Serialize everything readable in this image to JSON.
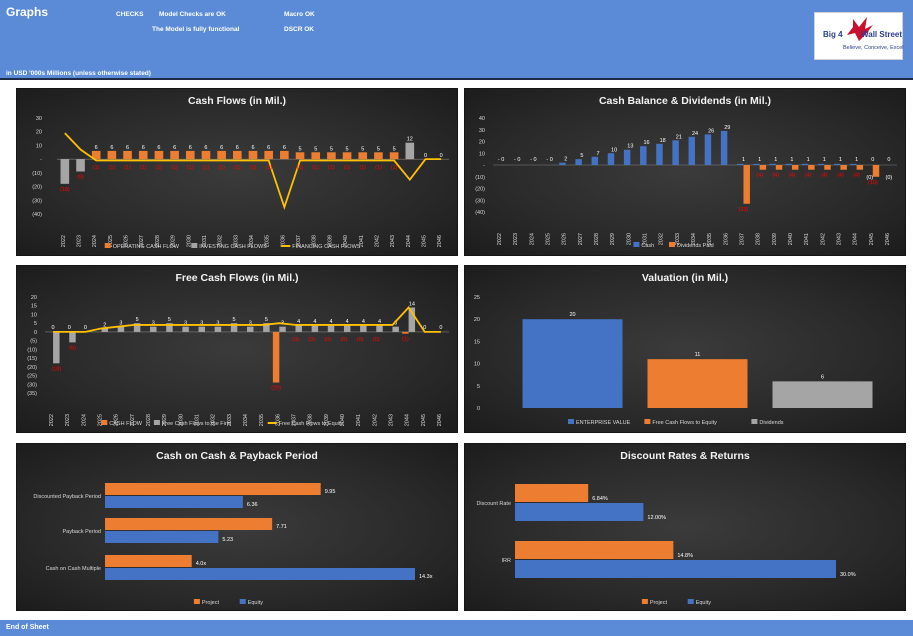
{
  "header": {
    "title": "Graphs",
    "checks_label": "CHECKS",
    "model_checks": "Model Checks are OK",
    "macro": "Macro OK",
    "functional": "The Model is fully functional",
    "dscr": "DSCR OK",
    "units": "in USD '000s Millions (unless otherwise stated)"
  },
  "logo": {
    "text_a": "Big 4",
    "text_b": "Wall Street",
    "slogan": "Believe, Conceive, Excel",
    "color": "#c8102e"
  },
  "footer": {
    "text": "End of Sheet"
  },
  "colors": {
    "blue": "#4472c4",
    "orange": "#ed7d31",
    "gray": "#a5a5a5",
    "yellow": "#ffc000",
    "negative": "#ff0000",
    "header": "#5b8bd6"
  },
  "chart_data": [
    {
      "id": "cash-flows",
      "type": "bar",
      "title": "Cash Flows (in Mil.)",
      "categories": [
        "2022",
        "2023",
        "2024",
        "2025",
        "2026",
        "2027",
        "2028",
        "2029",
        "2030",
        "2031",
        "2032",
        "2033",
        "2034",
        "2035",
        "2036",
        "2037",
        "2038",
        "2039",
        "2040",
        "2041",
        "2042",
        "2043",
        "2044",
        "2045",
        "2046"
      ],
      "yticks": [
        "30",
        "20",
        "10",
        "-",
        "(10)",
        "(20)",
        "(30)",
        "(40)"
      ],
      "ylim": [
        -40,
        30
      ],
      "series": [
        {
          "name": "OPERATING CASH FLOW",
          "kind": "bar",
          "color": "#ed7d31",
          "values": [
            0,
            0,
            6,
            6,
            6,
            6,
            6,
            6,
            6,
            6,
            6,
            6,
            6,
            6,
            6,
            5,
            5,
            5,
            5,
            5,
            5,
            5,
            1,
            0,
            0
          ]
        },
        {
          "name": "INVESTING CASH FLOWS",
          "kind": "bar",
          "color": "#a5a5a5",
          "values": [
            -18,
            -9,
            0,
            0,
            0,
            0,
            0,
            0,
            0,
            0,
            0,
            0,
            0,
            0,
            0,
            0,
            0,
            0,
            0,
            0,
            0,
            0,
            12,
            0,
            0
          ]
        },
        {
          "name": "FINANCING CASH FLOWS",
          "kind": "line",
          "color": "#ffc000",
          "values": [
            19,
            7,
            -1,
            -1,
            -1,
            -1,
            -1,
            -1,
            -1,
            -1,
            -1,
            -1,
            -1,
            -1,
            -35,
            -1,
            -1,
            -1,
            -1,
            -1,
            -1,
            -1,
            -15,
            0,
            0
          ]
        }
      ],
      "labels": [
        "(18)",
        "(9)",
        "6",
        "6",
        "6",
        "6",
        "6",
        "6",
        "6",
        "6",
        "6",
        "6",
        "6",
        "6",
        "6",
        "5",
        "5",
        "5",
        "5",
        "5",
        "5",
        "5",
        "1",
        "12",
        "0",
        "0",
        "0"
      ],
      "legend": "bottom"
    },
    {
      "id": "cash-balance",
      "type": "bar",
      "title": "Cash Balance & Dividends (in Mil.)",
      "categories": [
        "2022",
        "2023",
        "2024",
        "2025",
        "2026",
        "2027",
        "2028",
        "2029",
        "2030",
        "2031",
        "2032",
        "2033",
        "2034",
        "2035",
        "2036",
        "2037",
        "2038",
        "2039",
        "2040",
        "2041",
        "2042",
        "2043",
        "2044",
        "2045",
        "2046"
      ],
      "yticks": [
        "40",
        "30",
        "20",
        "10",
        "-",
        "(10)",
        "(20)",
        "(30)",
        "(40)"
      ],
      "ylim": [
        -40,
        40
      ],
      "series": [
        {
          "name": "Cash",
          "color": "#4472c4",
          "values": [
            0,
            0,
            0,
            0,
            2,
            5,
            7,
            10,
            13,
            16,
            18,
            21,
            24,
            26,
            29,
            1,
            1,
            1,
            1,
            1,
            1,
            1,
            1,
            0,
            0
          ]
        },
        {
          "name": "Dividends Paid",
          "color": "#ed7d31",
          "values": [
            0,
            0,
            0,
            0,
            0,
            0,
            0,
            0,
            0,
            0,
            0,
            0,
            0,
            0,
            0,
            -33,
            -4,
            -4,
            -4,
            -4,
            -4,
            -4,
            -4,
            -10,
            0
          ]
        }
      ],
      "point_labels": [
        "-",
        "0",
        "-",
        "0",
        "-",
        "0",
        "-",
        "0",
        "2",
        "0",
        "5",
        "0",
        "7",
        "0",
        "10",
        "0",
        "13",
        "0",
        "16",
        "18",
        "21",
        "24",
        "26",
        "29",
        "0",
        "1",
        "(33)",
        "1",
        "1",
        "1",
        "1",
        "1",
        "1",
        "1",
        "(0)",
        "(10)",
        "(0)",
        "0",
        "(0)",
        "0"
      ],
      "legend": "bottom"
    },
    {
      "id": "free-cash-flows",
      "type": "bar",
      "title": "Free Cash Flows (in Mil.)",
      "categories": [
        "2022",
        "2023",
        "2024",
        "2025",
        "2026",
        "2027",
        "2028",
        "2029",
        "2030",
        "2031",
        "2032",
        "2033",
        "2034",
        "2035",
        "2036",
        "2037",
        "2038",
        "2039",
        "2040",
        "2041",
        "2042",
        "2043",
        "2044",
        "2045",
        "2046"
      ],
      "yticks": [
        "20",
        "15",
        "10",
        "5",
        "0",
        "(5)",
        "(10)",
        "(15)",
        "(20)",
        "(25)",
        "(30)",
        "(35)"
      ],
      "ylim": [
        -35,
        20
      ],
      "series": [
        {
          "name": "CASH FLOW",
          "kind": "bar",
          "color": "#ed7d31",
          "values": [
            0,
            0,
            0,
            0,
            0,
            0,
            0,
            0,
            0,
            0,
            0,
            0,
            0,
            0,
            -29,
            0,
            0,
            0,
            0,
            0,
            0,
            0,
            -1,
            0,
            0
          ]
        },
        {
          "name": "Free Cash Flows to the Firm",
          "kind": "bar",
          "color": "#a5a5a5",
          "values": [
            -18,
            -6,
            0,
            2,
            3,
            5,
            3,
            5,
            3,
            3,
            3,
            5,
            3,
            5,
            3,
            4,
            4,
            4,
            4,
            4,
            4,
            3,
            14,
            0,
            0
          ]
        },
        {
          "name": "Free Cash Flows to Equity",
          "kind": "line",
          "color": "#ffc000",
          "values": [
            0,
            0,
            0,
            2,
            3,
            4,
            4,
            4,
            4,
            4,
            4,
            4,
            4,
            4,
            5,
            4,
            4,
            4,
            4,
            4,
            4,
            4,
            14,
            0,
            0
          ]
        }
      ],
      "point_labels": [
        "0",
        "(18)",
        "0",
        "(6)",
        "0",
        "2",
        "2",
        "3",
        "5",
        "3",
        "5",
        "3",
        "5",
        "3",
        "5",
        "3",
        "5",
        "3",
        "5",
        "3",
        "5",
        "3",
        "5",
        "4",
        "(29)",
        "4",
        "(0)",
        "4",
        "(0)",
        "4",
        "(0)",
        "4",
        "(0)",
        "4",
        "(0)",
        "4",
        "(0)",
        "3",
        "(1)",
        "5",
        "14",
        "0",
        "0",
        "0"
      ],
      "legend": "bottom"
    },
    {
      "id": "valuation",
      "type": "bar",
      "title": "Valuation (in Mil.)",
      "categories": [
        "ENTERPRISE VALUE",
        "Free Cash Flows to Equity",
        "Dividends"
      ],
      "values": [
        20,
        11,
        6
      ],
      "colors": [
        "#4472c4",
        "#ed7d31",
        "#a5a5a5"
      ],
      "yticks": [
        "25",
        "20",
        "15",
        "10",
        "5",
        "0"
      ],
      "ylim": [
        0,
        25
      ],
      "legend": "bottom"
    },
    {
      "id": "cash-on-cash",
      "type": "bar",
      "orientation": "horizontal",
      "title": "Cash on Cash & Payback Period",
      "categories": [
        "Discounted Payback Period",
        "Payback Period",
        "Cash on Cash Multiple"
      ],
      "series": [
        {
          "name": "Project",
          "color": "#ed7d31",
          "values": [
            9.95,
            7.71,
            4.0
          ],
          "labels": [
            "9.95",
            "7.71",
            "4.0x"
          ]
        },
        {
          "name": "Equity",
          "color": "#4472c4",
          "values": [
            6.36,
            5.23,
            14.3
          ],
          "labels": [
            "6.36",
            "5.23",
            "14.3x"
          ]
        }
      ],
      "xlim": [
        0,
        14.3
      ],
      "legend": "bottom"
    },
    {
      "id": "discount-rates",
      "type": "bar",
      "orientation": "horizontal",
      "title": "Discount Rates & Returns",
      "categories": [
        "Discount Rate",
        "IRR"
      ],
      "series": [
        {
          "name": "Project",
          "color": "#ed7d31",
          "values": [
            6.84,
            14.8
          ],
          "labels": [
            "6.84%",
            "14.8%"
          ]
        },
        {
          "name": "Equity",
          "color": "#4472c4",
          "values": [
            12.0,
            30.0
          ],
          "labels": [
            "12.00%",
            "30.0%"
          ]
        }
      ],
      "xlim": [
        0,
        30
      ],
      "legend": "bottom"
    }
  ]
}
